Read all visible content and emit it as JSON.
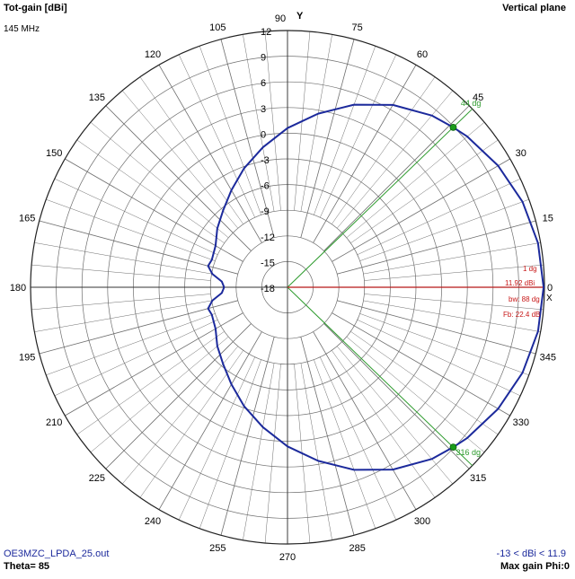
{
  "header": {
    "title": "Tot-gain [dBi]",
    "frequency": "145 MHz",
    "plane": "Vertical plane"
  },
  "footer": {
    "file": "OE3MZC_LPDA_25.out",
    "theta": "Theta= 85",
    "range": "-13 < dBi < 11.9",
    "max_gain": "Max gain Phi:0"
  },
  "colors": {
    "pattern": "#1c2a9c",
    "grid": "#6e6e6e",
    "beamwidth": "#2e9b2e",
    "max_line": "#b81818",
    "marker_text": "#c81818"
  },
  "chart_data": {
    "type": "polar",
    "angular_unit": "deg",
    "radial_unit": "dBi",
    "radial_range": [
      -18,
      12
    ],
    "radial_ticks": [
      "12",
      "9",
      "6",
      "3",
      "0",
      "-3",
      "-6",
      "-9",
      "-12",
      "-15",
      "-18"
    ],
    "angle_labels": [
      "0",
      "15",
      "30",
      "45",
      "60",
      "75",
      "90",
      "105",
      "120",
      "135",
      "150",
      "165",
      "180",
      "195",
      "210",
      "225",
      "240",
      "255",
      "270",
      "285",
      "300",
      "315",
      "330",
      "345"
    ],
    "axis_label_y": "Y",
    "series": [
      {
        "angles": [
          0,
          10,
          20,
          30,
          40,
          44,
          50,
          60,
          70,
          80,
          90,
          100,
          110,
          120,
          130,
          140,
          150,
          160,
          165,
          170,
          175,
          180,
          185,
          190,
          195,
          200,
          210,
          220,
          230,
          240,
          250,
          260,
          270,
          280,
          290,
          300,
          310,
          316,
          320,
          330,
          340,
          350,
          360
        ],
        "gain": [
          11.9,
          11.7,
          11.2,
          10.4,
          9.4,
          8.9,
          8.2,
          6.6,
          4.7,
          2.6,
          0.6,
          -1.4,
          -3.2,
          -4.9,
          -6.3,
          -7.3,
          -8.3,
          -8.6,
          -8.4,
          -9.1,
          -10.3,
          -10.6,
          -10.3,
          -9.1,
          -8.4,
          -8.6,
          -8.3,
          -7.3,
          -6.3,
          -4.9,
          -3.2,
          -1.4,
          0.6,
          2.6,
          4.7,
          6.6,
          8.2,
          8.9,
          9.4,
          10.4,
          11.2,
          11.7,
          11.9
        ]
      }
    ],
    "markers": {
      "max_gain_direction": "0 dg",
      "max_gain_label": "1 dg",
      "gain_label": "11.92 dBi",
      "beamwidth_label": "bw: 88 dg",
      "fb_label": "Fb: 22.4 dB",
      "bw_upper": "44 dg",
      "bw_upper_angle": 44,
      "bw_lower": "316 dg",
      "bw_lower_angle": 316
    }
  }
}
